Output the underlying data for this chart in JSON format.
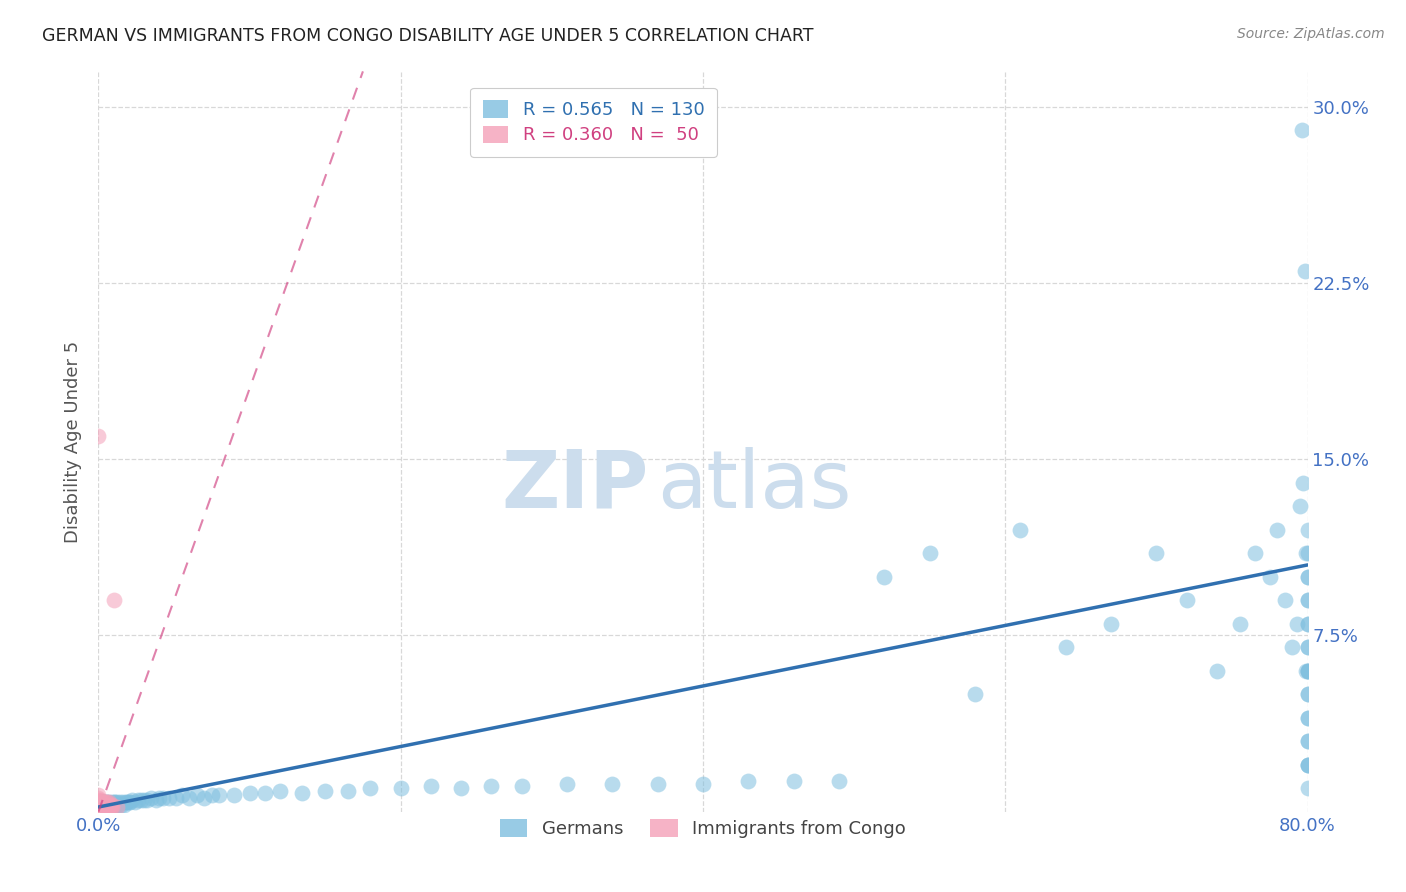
{
  "title": "GERMAN VS IMMIGRANTS FROM CONGO DISABILITY AGE UNDER 5 CORRELATION CHART",
  "source": "Source: ZipAtlas.com",
  "ylabel": "Disability Age Under 5",
  "xlim": [
    0.0,
    0.8
  ],
  "ylim": [
    0.0,
    0.315
  ],
  "ytick_vals": [
    0.075,
    0.15,
    0.225,
    0.3
  ],
  "ytick_labels": [
    "7.5%",
    "15.0%",
    "22.5%",
    "30.0%"
  ],
  "xtick_vals": [
    0.0,
    0.2,
    0.4,
    0.6,
    0.8
  ],
  "xtick_labels": [
    "0.0%",
    "",
    "",
    "",
    "80.0%"
  ],
  "german_R": 0.565,
  "german_N": 130,
  "congo_R": 0.36,
  "congo_N": 50,
  "blue_color": "#7fbfdf",
  "blue_fill": "#aad4ea",
  "blue_line_color": "#3070b0",
  "pink_color": "#f4a0b8",
  "pink_fill": "#f8c0d0",
  "pink_line_color": "#d04080",
  "background_color": "#ffffff",
  "grid_color": "#d8d8d8",
  "title_color": "#222222",
  "tick_color": "#4472c4",
  "ylabel_color": "#555555",
  "watermark_color": "#ccdded",
  "source_color": "#888888",
  "legend_edge_color": "#cccccc",
  "bottom_legend_color": "#444444",
  "blue_trend_x0": 0.0,
  "blue_trend_x1": 0.8,
  "blue_trend_y0": 0.002,
  "blue_trend_y1": 0.105,
  "pink_trend_x0": 0.0,
  "pink_trend_x1": 0.175,
  "pink_trend_y0": 0.0,
  "pink_trend_y1": 0.315,
  "german_x": [
    0.0,
    0.0,
    0.0,
    0.001,
    0.001,
    0.001,
    0.002,
    0.002,
    0.002,
    0.002,
    0.003,
    0.003,
    0.003,
    0.003,
    0.004,
    0.004,
    0.004,
    0.004,
    0.005,
    0.005,
    0.005,
    0.006,
    0.006,
    0.006,
    0.007,
    0.007,
    0.007,
    0.008,
    0.008,
    0.009,
    0.009,
    0.009,
    0.01,
    0.01,
    0.011,
    0.011,
    0.012,
    0.012,
    0.013,
    0.014,
    0.015,
    0.016,
    0.017,
    0.018,
    0.019,
    0.02,
    0.021,
    0.022,
    0.024,
    0.026,
    0.028,
    0.03,
    0.032,
    0.035,
    0.038,
    0.04,
    0.043,
    0.047,
    0.051,
    0.055,
    0.06,
    0.065,
    0.07,
    0.075,
    0.08,
    0.09,
    0.1,
    0.11,
    0.12,
    0.135,
    0.15,
    0.165,
    0.18,
    0.2,
    0.22,
    0.24,
    0.26,
    0.28,
    0.31,
    0.34,
    0.37,
    0.4,
    0.43,
    0.46,
    0.49,
    0.52,
    0.55,
    0.58,
    0.61,
    0.64,
    0.67,
    0.7,
    0.72,
    0.74,
    0.755,
    0.765,
    0.775,
    0.78,
    0.785,
    0.79,
    0.793,
    0.795,
    0.796,
    0.797,
    0.798,
    0.799,
    0.799,
    0.8,
    0.8,
    0.8,
    0.8,
    0.8,
    0.8,
    0.8,
    0.8,
    0.8,
    0.8,
    0.8,
    0.8,
    0.8,
    0.8,
    0.8,
    0.8,
    0.8,
    0.8,
    0.8,
    0.8,
    0.8,
    0.8,
    0.8
  ],
  "german_y": [
    0.001,
    0.002,
    0.003,
    0.001,
    0.002,
    0.003,
    0.001,
    0.002,
    0.003,
    0.004,
    0.001,
    0.002,
    0.003,
    0.004,
    0.001,
    0.002,
    0.003,
    0.004,
    0.002,
    0.003,
    0.004,
    0.002,
    0.003,
    0.004,
    0.002,
    0.003,
    0.004,
    0.002,
    0.003,
    0.002,
    0.003,
    0.004,
    0.003,
    0.004,
    0.003,
    0.004,
    0.003,
    0.004,
    0.003,
    0.004,
    0.003,
    0.004,
    0.003,
    0.004,
    0.004,
    0.004,
    0.004,
    0.005,
    0.004,
    0.005,
    0.005,
    0.005,
    0.005,
    0.006,
    0.005,
    0.006,
    0.006,
    0.006,
    0.006,
    0.007,
    0.006,
    0.007,
    0.006,
    0.007,
    0.007,
    0.007,
    0.008,
    0.008,
    0.009,
    0.008,
    0.009,
    0.009,
    0.01,
    0.01,
    0.011,
    0.01,
    0.011,
    0.011,
    0.012,
    0.012,
    0.012,
    0.012,
    0.013,
    0.013,
    0.013,
    0.1,
    0.11,
    0.05,
    0.12,
    0.07,
    0.08,
    0.11,
    0.09,
    0.06,
    0.08,
    0.11,
    0.1,
    0.12,
    0.09,
    0.07,
    0.08,
    0.13,
    0.29,
    0.14,
    0.23,
    0.06,
    0.11,
    0.08,
    0.1,
    0.07,
    0.09,
    0.12,
    0.06,
    0.11,
    0.08,
    0.07,
    0.09,
    0.1,
    0.05,
    0.06,
    0.03,
    0.05,
    0.02,
    0.04,
    0.02,
    0.06,
    0.03,
    0.04,
    0.02,
    0.01
  ],
  "congo_x": [
    0.0,
    0.0,
    0.0,
    0.0,
    0.0,
    0.0,
    0.0,
    0.0,
    0.0,
    0.0,
    0.0,
    0.0,
    0.0,
    0.0,
    0.0,
    0.001,
    0.001,
    0.001,
    0.001,
    0.001,
    0.001,
    0.001,
    0.001,
    0.002,
    0.002,
    0.002,
    0.002,
    0.003,
    0.003,
    0.003,
    0.003,
    0.004,
    0.004,
    0.004,
    0.004,
    0.005,
    0.005,
    0.005,
    0.006,
    0.006,
    0.006,
    0.007,
    0.007,
    0.007,
    0.008,
    0.008,
    0.009,
    0.009,
    0.01,
    0.012
  ],
  "congo_y": [
    0.0,
    0.0,
    0.0,
    0.001,
    0.001,
    0.001,
    0.002,
    0.002,
    0.003,
    0.003,
    0.004,
    0.005,
    0.006,
    0.007,
    0.16,
    0.0,
    0.001,
    0.001,
    0.002,
    0.002,
    0.003,
    0.004,
    0.005,
    0.001,
    0.002,
    0.003,
    0.004,
    0.001,
    0.002,
    0.003,
    0.004,
    0.001,
    0.002,
    0.003,
    0.004,
    0.002,
    0.003,
    0.004,
    0.002,
    0.003,
    0.004,
    0.002,
    0.003,
    0.004,
    0.002,
    0.003,
    0.002,
    0.003,
    0.09,
    0.002
  ]
}
